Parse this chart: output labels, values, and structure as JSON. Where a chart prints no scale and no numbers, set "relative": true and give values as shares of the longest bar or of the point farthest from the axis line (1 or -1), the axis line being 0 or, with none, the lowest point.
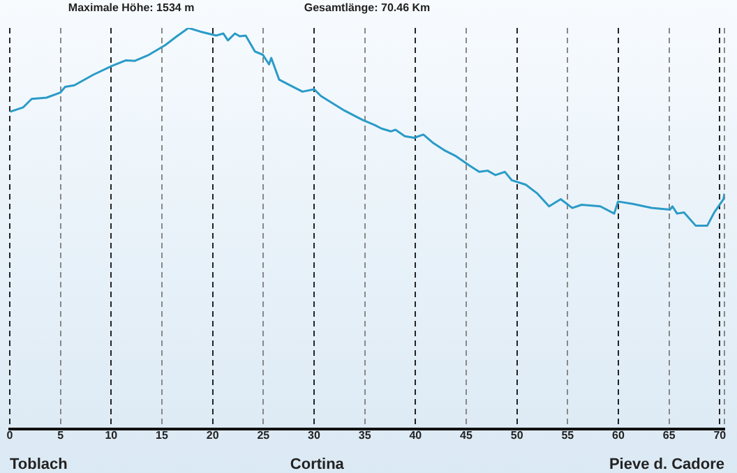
{
  "chart_data": {
    "type": "line",
    "title": "Maximale Höhe: 1534 m",
    "subtitle": "Gesamtlänge: 70.46 Km",
    "relative": true,
    "x": [
      0.04,
      1.33,
      2.16,
      3.62,
      5.0,
      5.46,
      6.37,
      8.22,
      10.05,
      11.42,
      12.35,
      13.72,
      15.32,
      16.47,
      17.62,
      18.76,
      20.37,
      21.06,
      21.51,
      22.2,
      22.67,
      23.26,
      24.18,
      24.95,
      25.56,
      25.78,
      26.56,
      27.48,
      28.86,
      30.0,
      30.69,
      32.99,
      34.82,
      35.96,
      36.65,
      37.57,
      38.03,
      38.95,
      39.87,
      40.78,
      41.7,
      42.84,
      44.0,
      45.37,
      46.28,
      47.11,
      47.89,
      48.81,
      49.5,
      50.88,
      52.02,
      53.17,
      54.32,
      55.46,
      56.38,
      58.22,
      59.59,
      59.97,
      61.42,
      63.27,
      65.1,
      65.33,
      65.79,
      66.47,
      67.62,
      68.77,
      69.46,
      70.37,
      70.46
    ],
    "series": [
      {
        "color": "#2a9bc7",
        "values": [
          0.791,
          0.802,
          0.823,
          0.826,
          0.839,
          0.853,
          0.857,
          0.883,
          0.905,
          0.919,
          0.918,
          0.933,
          0.957,
          0.979,
          1.0,
          0.991,
          0.981,
          0.986,
          0.969,
          0.986,
          0.979,
          0.981,
          0.941,
          0.933,
          0.909,
          0.925,
          0.871,
          0.859,
          0.841,
          0.847,
          0.83,
          0.794,
          0.77,
          0.758,
          0.749,
          0.742,
          0.746,
          0.73,
          0.726,
          0.734,
          0.714,
          0.695,
          0.68,
          0.656,
          0.641,
          0.644,
          0.633,
          0.641,
          0.62,
          0.609,
          0.587,
          0.555,
          0.573,
          0.551,
          0.559,
          0.555,
          0.537,
          0.567,
          0.561,
          0.551,
          0.547,
          0.555,
          0.537,
          0.54,
          0.507,
          0.507,
          0.54,
          0.573,
          0.587
        ]
      }
    ],
    "xlim": [
      0,
      70.46
    ],
    "xticks": [
      0,
      5,
      10,
      15,
      20,
      25,
      30,
      35,
      40,
      45,
      50,
      55,
      60,
      65,
      70,
      {
        "value": 70.46,
        "label": null
      }
    ],
    "grid": "x",
    "marker": "none",
    "line_style": "solid",
    "annotations": [
      "Toblach",
      "Cortina",
      "Pieve d. Cadore"
    ]
  }
}
